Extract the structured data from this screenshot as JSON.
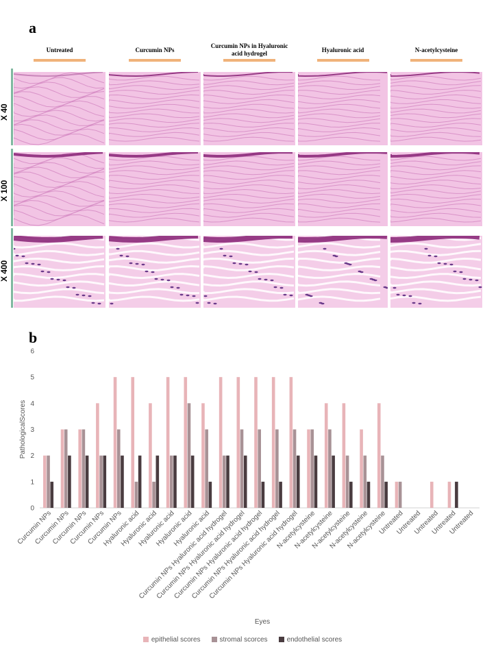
{
  "panel_a": {
    "letter": "a",
    "columns": [
      "Untreated",
      "Curcumin  NPs",
      "Curcumin NPs in Hyaluronic acid hydrogel",
      "Hyaluronic  acid",
      "N-acetylcysteine"
    ],
    "rows": [
      "X 40",
      "X 100",
      "X 400"
    ]
  },
  "panel_b": {
    "letter": "b"
  },
  "chart_data": {
    "type": "bar",
    "title": "",
    "xlabel": "Eyes",
    "ylabel": "PathologicalScores",
    "ylim": [
      0,
      6
    ],
    "yticks": [
      0,
      1,
      2,
      3,
      4,
      5,
      6
    ],
    "grid": false,
    "legend_position": "bottom",
    "categories": [
      "Curcumin NPs",
      "Curcumin NPs",
      "Curcumin NPs",
      "Curcumin NPs",
      "Curcumin NPs",
      "Hyaluronic acid",
      "Hyaluronic acid",
      "Hyaluronic acid",
      "Hyaluronic acid",
      "Hyaluronic acid",
      "Curcumin NPs Hyaluronic acid hydrogel",
      "Curcumin NPs Hyaluronic acid hydrogel",
      "Curcumin NPs Hyaluronic acid hydrogel",
      "Curcumin NPs Hyaluronic acid hydrogel",
      "Curcumin NPs Hyaluronic acid hydrogel",
      "N-acetylcysteine",
      "N-acetylcysteine",
      "N-acetylcysteine",
      "N-acetylcysteine",
      "N-acetylcysteine",
      "Untreated",
      "Untreated",
      "Untreated",
      "Untreated",
      "Untreated"
    ],
    "series": [
      {
        "name": "epithelial scores",
        "color": "#e8b4b8",
        "values": [
          2,
          3,
          3,
          4,
          5,
          5,
          4,
          5,
          5,
          4,
          5,
          5,
          5,
          5,
          5,
          3,
          4,
          4,
          3,
          4,
          1,
          0,
          1,
          1,
          0
        ]
      },
      {
        "name": "stromal scorces",
        "color": "#a89296",
        "values": [
          2,
          3,
          3,
          2,
          3,
          1,
          1,
          2,
          4,
          3,
          2,
          3,
          3,
          3,
          3,
          3,
          3,
          2,
          2,
          2,
          1,
          0,
          0,
          0,
          0
        ]
      },
      {
        "name": "endothelial scores",
        "color": "#4a3c40",
        "values": [
          1,
          2,
          2,
          2,
          2,
          2,
          2,
          2,
          2,
          1,
          2,
          2,
          1,
          1,
          2,
          2,
          2,
          1,
          1,
          1,
          0,
          0,
          0,
          1,
          0
        ]
      }
    ]
  }
}
